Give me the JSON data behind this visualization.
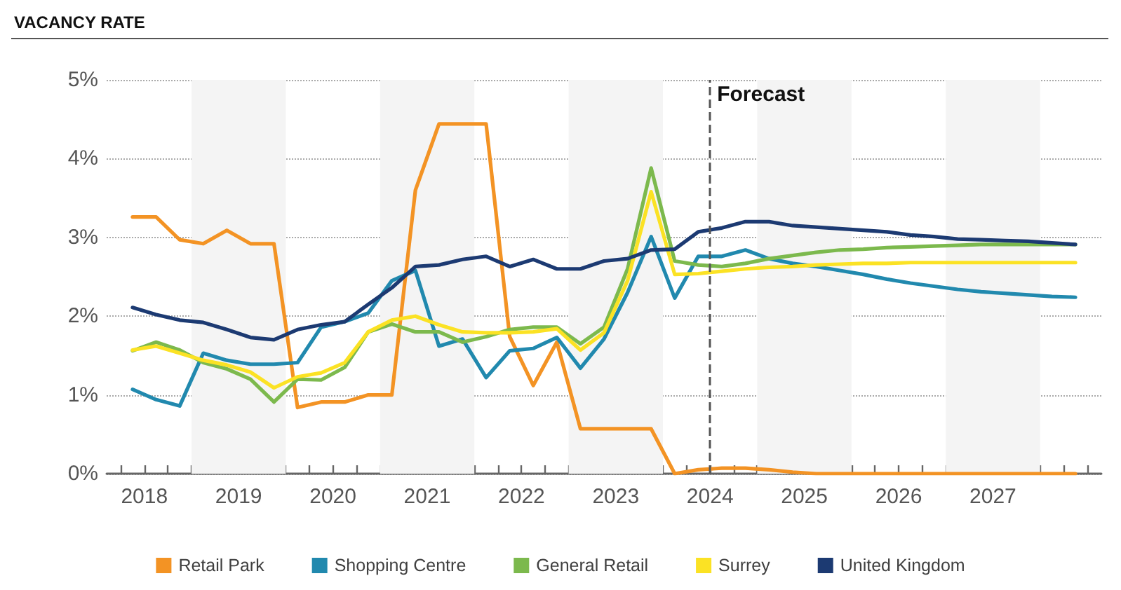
{
  "chart_data": {
    "type": "line",
    "title": "VACANCY RATE",
    "x": [
      2018.375,
      2018.625,
      2018.875,
      2019.125,
      2019.375,
      2019.625,
      2019.875,
      2020.125,
      2020.375,
      2020.625,
      2020.875,
      2021.125,
      2021.375,
      2021.625,
      2021.875,
      2022.125,
      2022.375,
      2022.625,
      2022.875,
      2023.125,
      2023.375,
      2023.625,
      2023.875,
      2024.125,
      2024.375,
      2024.625,
      2024.875,
      2025.125,
      2025.375,
      2025.625,
      2025.875,
      2026.125,
      2026.375,
      2026.625,
      2026.875,
      2027.125,
      2027.375,
      2027.625,
      2027.875,
      2028.125,
      2028.375
    ],
    "series": [
      {
        "name": "Retail Park",
        "color": "#f39324",
        "values": [
          3.26,
          3.26,
          2.97,
          2.92,
          3.09,
          2.92,
          2.92,
          0.84,
          0.91,
          0.91,
          1.0,
          1.0,
          3.6,
          4.44,
          4.44,
          4.44,
          1.74,
          1.12,
          1.67,
          0.57,
          0.57,
          0.57,
          0.57,
          0,
          0.05,
          0.07,
          0.07,
          0.05,
          0.02,
          0,
          0,
          0,
          0,
          0,
          0,
          0,
          0,
          0,
          0,
          0,
          0
        ]
      },
      {
        "name": "Shopping Centre",
        "color": "#2189ae",
        "values": [
          1.07,
          0.94,
          0.86,
          1.53,
          1.44,
          1.39,
          1.39,
          1.41,
          1.86,
          1.93,
          2.04,
          2.45,
          2.58,
          1.62,
          1.71,
          1.22,
          1.56,
          1.59,
          1.73,
          1.34,
          1.71,
          2.3,
          3.01,
          2.23,
          2.76,
          2.76,
          2.84,
          2.73,
          2.67,
          2.63,
          2.58,
          2.53,
          2.47,
          2.42,
          2.38,
          2.34,
          2.31,
          2.29,
          2.27,
          2.25,
          2.24
        ]
      },
      {
        "name": "General Retail",
        "color": "#7cb94d",
        "values": [
          1.56,
          1.67,
          1.57,
          1.41,
          1.33,
          1.2,
          0.91,
          1.2,
          1.19,
          1.35,
          1.8,
          1.9,
          1.8,
          1.8,
          1.67,
          1.74,
          1.83,
          1.86,
          1.86,
          1.65,
          1.86,
          2.6,
          3.88,
          2.7,
          2.65,
          2.63,
          2.67,
          2.73,
          2.77,
          2.81,
          2.84,
          2.85,
          2.87,
          2.88,
          2.89,
          2.9,
          2.91,
          2.91,
          2.91,
          2.91,
          2.91
        ]
      },
      {
        "name": "Surrey",
        "color": "#fbe224",
        "values": [
          1.57,
          1.62,
          1.53,
          1.44,
          1.38,
          1.29,
          1.09,
          1.23,
          1.28,
          1.41,
          1.8,
          1.95,
          2.0,
          1.89,
          1.8,
          1.79,
          1.79,
          1.8,
          1.84,
          1.57,
          1.79,
          2.45,
          3.58,
          2.53,
          2.54,
          2.57,
          2.6,
          2.62,
          2.63,
          2.65,
          2.66,
          2.67,
          2.67,
          2.68,
          2.68,
          2.68,
          2.68,
          2.68,
          2.68,
          2.68,
          2.68
        ]
      },
      {
        "name": "United Kingdom",
        "color": "#1c3a72",
        "values": [
          2.11,
          2.02,
          1.95,
          1.92,
          1.83,
          1.73,
          1.7,
          1.83,
          1.89,
          1.93,
          2.15,
          2.36,
          2.63,
          2.65,
          2.72,
          2.76,
          2.63,
          2.72,
          2.6,
          2.6,
          2.7,
          2.73,
          2.84,
          2.85,
          3.07,
          3.12,
          3.2,
          3.2,
          3.15,
          3.13,
          3.11,
          3.09,
          3.07,
          3.03,
          3.01,
          2.98,
          2.97,
          2.96,
          2.95,
          2.93,
          2.91
        ]
      }
    ],
    "xlim": [
      2018.1,
      2028.65
    ],
    "xticks": [
      {
        "value": 2018.25,
        "label": null
      },
      {
        "value": 2018.5,
        "label": "2018"
      },
      {
        "value": 2018.75,
        "label": null
      },
      {
        "value": 2019,
        "label": null
      },
      {
        "value": 2019.25,
        "label": null
      },
      {
        "value": 2019.5,
        "label": "2019"
      },
      {
        "value": 2019.75,
        "label": null
      },
      {
        "value": 2020,
        "label": null
      },
      {
        "value": 2020.25,
        "label": null
      },
      {
        "value": 2020.5,
        "label": "2020"
      },
      {
        "value": 2020.75,
        "label": null
      },
      {
        "value": 2021,
        "label": null
      },
      {
        "value": 2021.25,
        "label": null
      },
      {
        "value": 2021.5,
        "label": "2021"
      },
      {
        "value": 2021.75,
        "label": null
      },
      {
        "value": 2022,
        "label": null
      },
      {
        "value": 2022.25,
        "label": null
      },
      {
        "value": 2022.5,
        "label": "2022"
      },
      {
        "value": 2022.75,
        "label": null
      },
      {
        "value": 2023,
        "label": null
      },
      {
        "value": 2023.25,
        "label": null
      },
      {
        "value": 2023.5,
        "label": "2023"
      },
      {
        "value": 2023.75,
        "label": null
      },
      {
        "value": 2024,
        "label": null
      },
      {
        "value": 2024.25,
        "label": null
      },
      {
        "value": 2024.5,
        "label": "2024"
      },
      {
        "value": 2024.75,
        "label": null
      },
      {
        "value": 2025,
        "label": null
      },
      {
        "value": 2025.25,
        "label": null
      },
      {
        "value": 2025.5,
        "label": "2025"
      },
      {
        "value": 2025.75,
        "label": null
      },
      {
        "value": 2026,
        "label": null
      },
      {
        "value": 2026.25,
        "label": null
      },
      {
        "value": 2026.5,
        "label": "2026"
      },
      {
        "value": 2026.75,
        "label": null
      },
      {
        "value": 2027,
        "label": null
      },
      {
        "value": 2027.25,
        "label": null
      },
      {
        "value": 2027.5,
        "label": "2027"
      },
      {
        "value": 2027.75,
        "label": null
      },
      {
        "value": 2028,
        "label": null
      },
      {
        "value": 2028.25,
        "label": null
      },
      {
        "value": 2028.5,
        "label": null
      }
    ],
    "ylim": [
      0,
      5
    ],
    "yticks": [
      {
        "value": 0,
        "label": "0%"
      },
      {
        "value": 1,
        "label": "1%"
      },
      {
        "value": 2,
        "label": "2%"
      },
      {
        "value": 3,
        "label": "3%"
      },
      {
        "value": 4,
        "label": "4%"
      },
      {
        "value": 5,
        "label": "5%"
      }
    ],
    "ref_lines": [
      {
        "axis": "x",
        "value": 2024.5,
        "label": "Forecast",
        "color": "#555555",
        "line_style": "dashed"
      }
    ],
    "bands": [
      {
        "axis": "x",
        "from": 2019,
        "to": 2020,
        "color": "#f4f4f4"
      },
      {
        "axis": "x",
        "from": 2021,
        "to": 2022,
        "color": "#f4f4f4"
      },
      {
        "axis": "x",
        "from": 2023,
        "to": 2024,
        "color": "#f4f4f4"
      },
      {
        "axis": "x",
        "from": 2025,
        "to": 2026,
        "color": "#f4f4f4"
      },
      {
        "axis": "x",
        "from": 2027,
        "to": 2028,
        "color": "#f4f4f4"
      }
    ],
    "grid": "y",
    "legend": "bottom",
    "marker": "none",
    "line_style": "solid"
  }
}
